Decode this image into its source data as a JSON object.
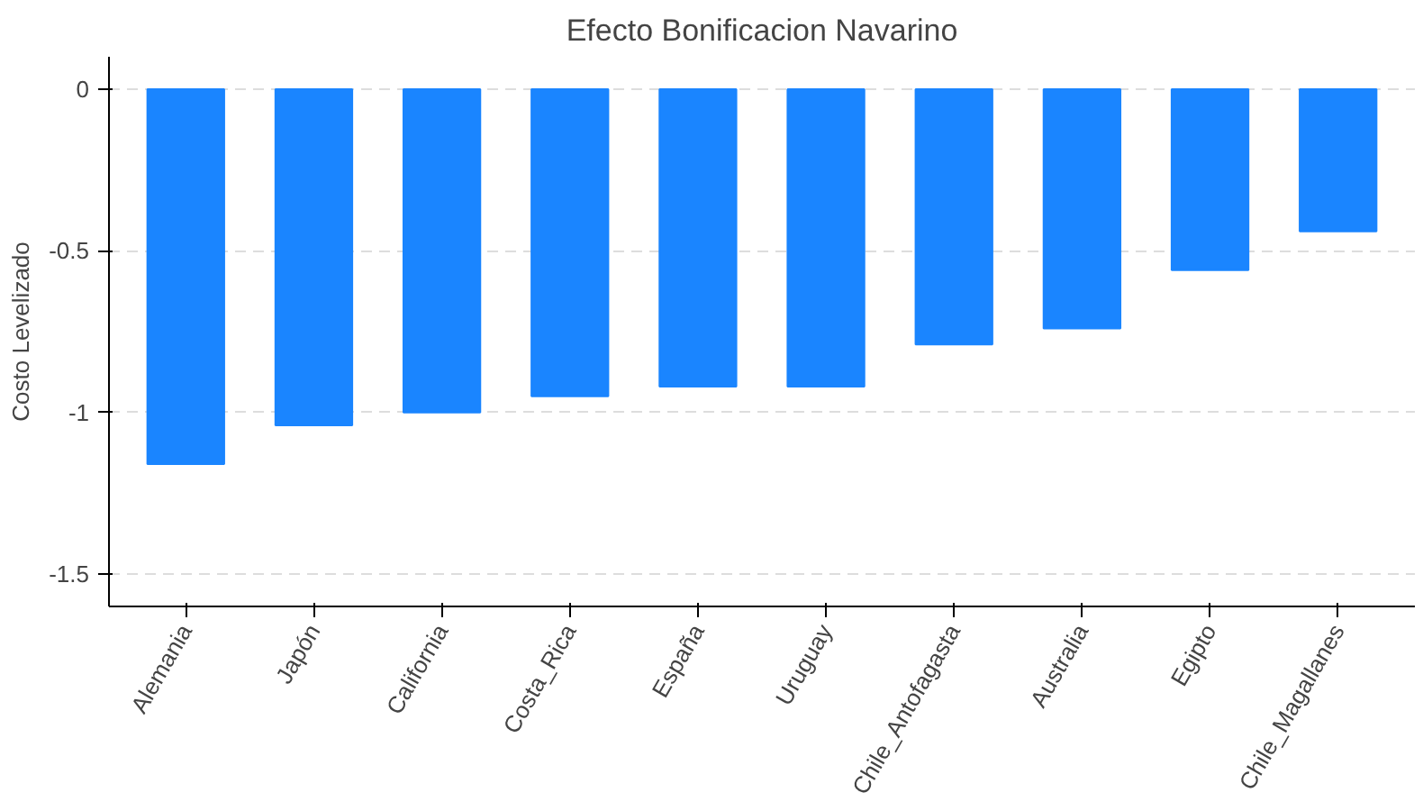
{
  "chart_data": {
    "type": "bar",
    "title": "Efecto Bonificacion Navarino",
    "ylabel": "Costo Levelizado",
    "categories": [
      "Alemania",
      "Japón",
      "California",
      "Costa_Rica",
      "España",
      "Uruguay",
      "Chile_Antofagasta",
      "Australia",
      "Egipto",
      "Chile_Magallanes"
    ],
    "values": [
      -1.16,
      -1.04,
      -1.0,
      -0.95,
      -0.92,
      -0.92,
      -0.79,
      -0.74,
      -0.56,
      -0.44
    ],
    "color": "#1a85ff",
    "ylim": [
      -1.6,
      0.1
    ],
    "yticks": [
      0,
      -0.5,
      -1,
      -1.5
    ],
    "grid": "y"
  }
}
